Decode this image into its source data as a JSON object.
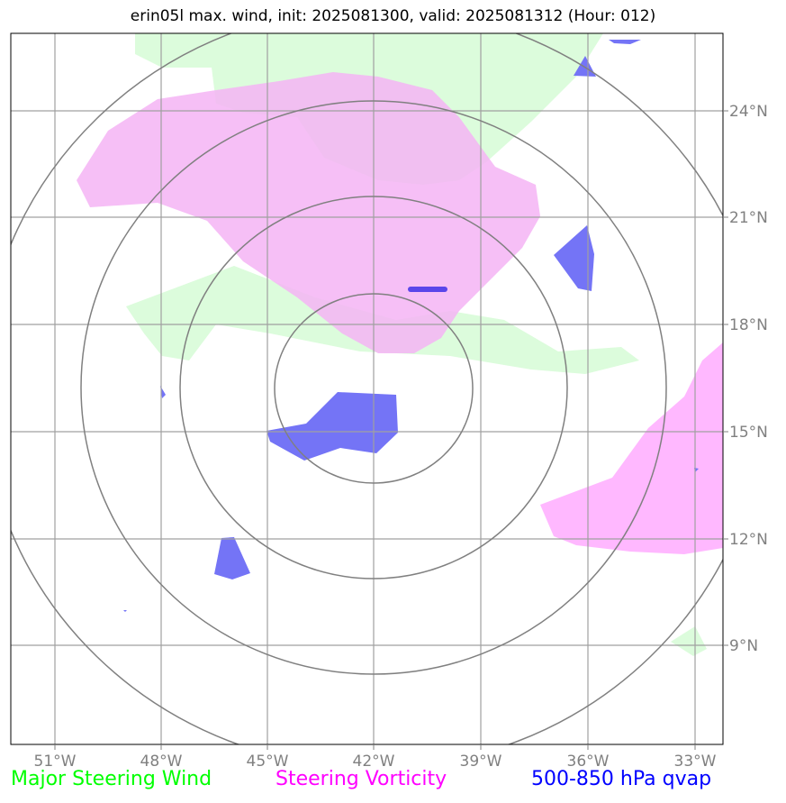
{
  "title": "erin05l max. wind, init: 2025081300, valid: 2025081312 (Hour: 012)",
  "lon_labels": [
    "51°W",
    "48°W",
    "45°W",
    "42°W",
    "39°W",
    "36°W",
    "33°W"
  ],
  "lat_labels": [
    "24°N",
    "21°N",
    "18°N",
    "15°N",
    "12°N",
    "9°N"
  ],
  "legend": {
    "wind": "Major Steering Wind",
    "vorticity": "Steering Vorticity",
    "qvap": "500-850 hPa qvap"
  },
  "colors": {
    "wind": "#00ff00",
    "vorticity": "#ff00ff",
    "qvap": "#0000ff",
    "grid": "#a0a0a0",
    "rings": "#808080"
  }
}
